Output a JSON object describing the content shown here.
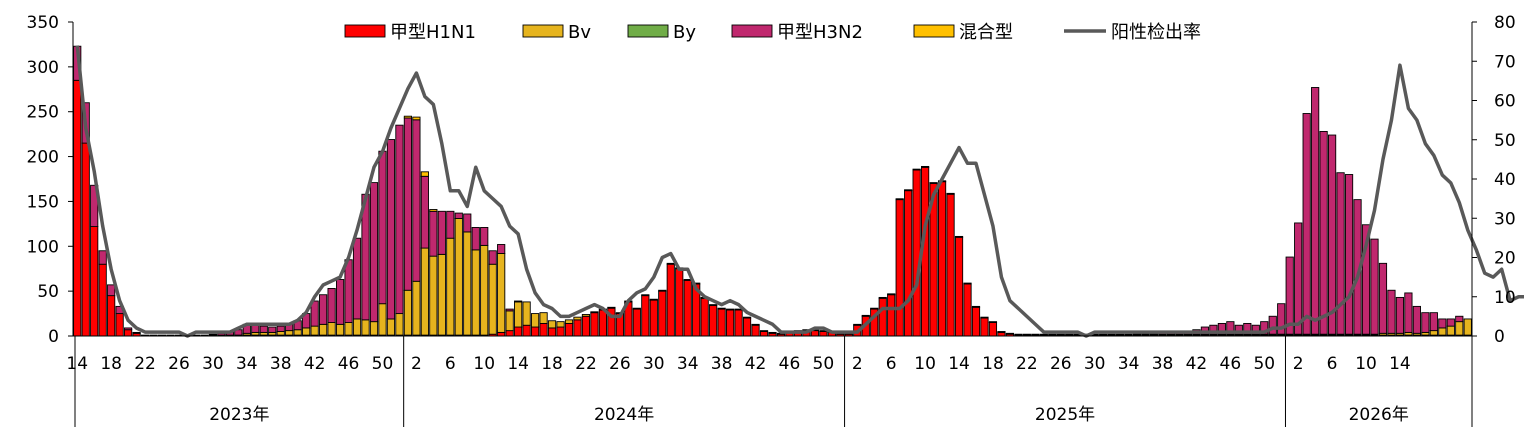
{
  "chart_data": {
    "type": "bar",
    "stacked": true,
    "legend_position": "top",
    "grid": false,
    "left_axis": {
      "ylim": [
        0,
        350
      ],
      "ticks": [
        0,
        50,
        100,
        150,
        200,
        250,
        300,
        350
      ]
    },
    "right_axis": {
      "ylim": [
        0,
        80
      ],
      "ticks": [
        0,
        10,
        20,
        30,
        40,
        50,
        60,
        70,
        80
      ]
    },
    "x_tick_labels": [
      {
        "week": 14,
        "label": "14"
      },
      {
        "week": 18,
        "label": "18"
      },
      {
        "week": 22,
        "label": "22"
      },
      {
        "week": 26,
        "label": "26"
      },
      {
        "week": 30,
        "label": "30"
      },
      {
        "week": 34,
        "label": "34"
      },
      {
        "week": 38,
        "label": "38"
      },
      {
        "week": 42,
        "label": "42"
      },
      {
        "week": 46,
        "label": "46"
      },
      {
        "week": 50,
        "label": "50"
      },
      {
        "week": 54,
        "label": "2"
      },
      {
        "week": 58,
        "label": "6"
      },
      {
        "week": 62,
        "label": "10"
      },
      {
        "week": 66,
        "label": "14"
      },
      {
        "week": 70,
        "label": "18"
      },
      {
        "week": 74,
        "label": "22"
      },
      {
        "week": 78,
        "label": "26"
      },
      {
        "week": 82,
        "label": "30"
      },
      {
        "week": 86,
        "label": "34"
      },
      {
        "week": 90,
        "label": "38"
      },
      {
        "week": 94,
        "label": "42"
      },
      {
        "week": 98,
        "label": "46"
      },
      {
        "week": 102,
        "label": "50"
      },
      {
        "week": 106,
        "label": "2"
      },
      {
        "week": 110,
        "label": "6"
      },
      {
        "week": 114,
        "label": "10"
      },
      {
        "week": 118,
        "label": "14"
      },
      {
        "week": 122,
        "label": "18"
      },
      {
        "week": 126,
        "label": "22"
      },
      {
        "week": 130,
        "label": "26"
      },
      {
        "week": 134,
        "label": "30"
      },
      {
        "week": 138,
        "label": "34"
      },
      {
        "week": 142,
        "label": "38"
      },
      {
        "week": 146,
        "label": "42"
      },
      {
        "week": 150,
        "label": "46"
      },
      {
        "week": 154,
        "label": "50"
      },
      {
        "week": 158,
        "label": "2"
      },
      {
        "week": 162,
        "label": "6"
      },
      {
        "week": 166,
        "label": "10"
      },
      {
        "week": 170,
        "label": "14"
      }
    ],
    "year_groups": [
      {
        "label": "2023年",
        "start_week": 14,
        "end_week": 52
      },
      {
        "label": "2024年",
        "start_week": 53,
        "end_week": 104
      },
      {
        "label": "2025年",
        "start_week": 105,
        "end_week": 156
      },
      {
        "label": "2026年",
        "start_week": 157,
        "end_week": 170
      }
    ],
    "weeks_start": 14,
    "series": [
      {
        "name": "甲型H1N1",
        "color": "#FF0000",
        "kind": "bar",
        "values": [
          285,
          215,
          122,
          80,
          45,
          25,
          7,
          3,
          1,
          1,
          1,
          1,
          1,
          1,
          1,
          1,
          1,
          1,
          1,
          1,
          1,
          1,
          1,
          1,
          1,
          1,
          1,
          1,
          1,
          1,
          1,
          1,
          1,
          1,
          1,
          1,
          1,
          1,
          1,
          1,
          1,
          1,
          1,
          1,
          1,
          1,
          1,
          1,
          1,
          2,
          4,
          6,
          10,
          12,
          10,
          14,
          9,
          10,
          14,
          18,
          22,
          26,
          29,
          31,
          25,
          38,
          30,
          45,
          40,
          50,
          80,
          75,
          62,
          58,
          42,
          34,
          30,
          29,
          29,
          20,
          12,
          5,
          3,
          2,
          4,
          5,
          6,
          6,
          5,
          4,
          2,
          2,
          12,
          22,
          30,
          42,
          46,
          152,
          162,
          185,
          188,
          170,
          172,
          158,
          110,
          58,
          32,
          20,
          15,
          4,
          2,
          1,
          1,
          1,
          1,
          1,
          1,
          1,
          1,
          1,
          1,
          1,
          1,
          1,
          1,
          1,
          1,
          1,
          1,
          1,
          1,
          1,
          1,
          1,
          1,
          1,
          1,
          1,
          1,
          1,
          1,
          1,
          1,
          1,
          1,
          1,
          1,
          1,
          1,
          1,
          1,
          1,
          1,
          1,
          1,
          1,
          1,
          1,
          1,
          1,
          1,
          1,
          1,
          1,
          1
        ]
      },
      {
        "name": "Bv",
        "color": "#E6B41E",
        "kind": "bar",
        "values": [
          0,
          0,
          0,
          0,
          0,
          0,
          0,
          0,
          0,
          0,
          0,
          0,
          0,
          0,
          0,
          0,
          0,
          0,
          0,
          0,
          2,
          3,
          3,
          3,
          4,
          5,
          6,
          8,
          10,
          12,
          14,
          12,
          14,
          18,
          17,
          15,
          35,
          18,
          24,
          50,
          60,
          97,
          88,
          90,
          108,
          130,
          115,
          95,
          100,
          78,
          88,
          22,
          28,
          26,
          15,
          12,
          8,
          6,
          4,
          3,
          2,
          1,
          1,
          1,
          1,
          1,
          1,
          1,
          1,
          1,
          1,
          1,
          1,
          1,
          1,
          1,
          1,
          1,
          1,
          1,
          1,
          1,
          1,
          1,
          1,
          1,
          1,
          1,
          1,
          1,
          1,
          1,
          1,
          1,
          1,
          1,
          1,
          1,
          1,
          1,
          1,
          1,
          1,
          1,
          1,
          1,
          1,
          1,
          1,
          1,
          1,
          1,
          1,
          1,
          1,
          1,
          1,
          1,
          1,
          1,
          1,
          1,
          1,
          1,
          1,
          1,
          1,
          1,
          1,
          1,
          1,
          1,
          1,
          1,
          1,
          1,
          1,
          1,
          1,
          1,
          1,
          1,
          1,
          1,
          1,
          1,
          1,
          1,
          1,
          1,
          1,
          1,
          1,
          1,
          2,
          2,
          2,
          3,
          2,
          3,
          5,
          8,
          10,
          15,
          18,
          20,
          30
        ]
      },
      {
        "name": "By",
        "color": "#70AD47",
        "kind": "bar",
        "values": [
          0,
          0,
          0,
          0,
          0,
          0,
          0,
          0,
          0,
          0,
          0,
          0,
          0,
          0,
          0,
          0,
          0,
          0,
          0,
          0,
          0,
          0,
          0,
          0,
          0,
          0,
          0,
          0,
          0,
          0,
          0,
          0,
          0,
          0,
          0,
          0,
          0,
          0,
          0,
          0,
          0,
          0,
          0,
          0,
          0,
          0,
          0,
          0,
          0,
          0,
          0,
          0,
          0,
          0,
          0,
          0,
          0,
          0,
          0,
          0,
          0,
          0,
          0,
          0,
          0,
          0,
          0,
          0,
          0,
          0,
          0,
          0,
          0,
          0,
          0,
          0,
          0,
          0,
          0,
          0,
          0,
          0,
          0,
          0,
          0,
          0,
          0,
          0,
          0,
          0,
          0,
          0,
          0,
          0,
          0,
          0,
          0,
          0,
          0,
          0,
          0,
          0,
          0,
          0,
          0,
          0,
          0,
          0,
          0,
          0,
          0,
          0,
          0,
          0,
          0,
          0,
          0,
          0,
          0,
          0,
          0,
          0,
          0,
          0,
          0,
          0,
          0,
          0,
          0,
          0,
          0,
          0,
          0,
          0,
          0,
          0,
          0,
          0,
          0,
          0,
          0,
          0,
          0,
          0,
          0,
          0,
          0,
          0,
          0,
          0,
          0,
          0,
          0,
          0,
          0,
          0,
          0,
          0,
          0,
          0,
          0,
          0,
          0,
          0,
          0,
          0,
          0,
          0,
          0
        ]
      },
      {
        "name": "甲型H3N2",
        "color": "#C0286E",
        "kind": "bar",
        "values": [
          38,
          45,
          46,
          15,
          12,
          8,
          2,
          1,
          0,
          0,
          0,
          0,
          0,
          0,
          0,
          0,
          1,
          2,
          4,
          6,
          10,
          8,
          7,
          6,
          6,
          8,
          10,
          16,
          28,
          33,
          38,
          50,
          70,
          90,
          140,
          155,
          170,
          200,
          210,
          192,
          180,
          80,
          50,
          48,
          30,
          6,
          20,
          25,
          20,
          15,
          10,
          2,
          1,
          0,
          0,
          0,
          0,
          0,
          0,
          0,
          0,
          0,
          0,
          0,
          0,
          0,
          0,
          0,
          0,
          0,
          0,
          0,
          0,
          0,
          0,
          0,
          0,
          0,
          0,
          0,
          0,
          0,
          0,
          0,
          0,
          0,
          0,
          0,
          0,
          0,
          0,
          0,
          0,
          0,
          0,
          0,
          0,
          0,
          0,
          0,
          0,
          0,
          0,
          0,
          0,
          0,
          0,
          0,
          0,
          0,
          0,
          0,
          0,
          0,
          0,
          0,
          0,
          0,
          0,
          0,
          0,
          0,
          0,
          0,
          0,
          1,
          1,
          1,
          2,
          2,
          2,
          3,
          5,
          8,
          10,
          12,
          14,
          10,
          12,
          10,
          14,
          20,
          34,
          86,
          124,
          246,
          275,
          226,
          222,
          180,
          178,
          150,
          122,
          106,
          78,
          48,
          40,
          44,
          30,
          22,
          20,
          10,
          8,
          6
        ]
      },
      {
        "name": "混合型",
        "color": "#FFC000",
        "kind": "bar",
        "values": [
          0,
          0,
          0,
          0,
          0,
          0,
          0,
          0,
          0,
          0,
          0,
          0,
          0,
          0,
          0,
          0,
          0,
          0,
          0,
          0,
          0,
          0,
          0,
          0,
          0,
          0,
          0,
          0,
          0,
          0,
          0,
          0,
          0,
          0,
          0,
          0,
          0,
          0,
          0,
          2,
          3,
          5,
          2,
          0,
          0,
          0,
          0,
          0,
          0,
          0,
          0,
          0,
          0,
          0,
          0,
          0,
          0,
          0,
          0,
          0,
          0,
          0,
          0,
          0,
          0,
          0,
          0,
          0,
          0,
          0,
          0,
          0,
          0,
          0,
          0,
          0,
          0,
          0,
          0,
          0,
          0,
          0,
          0,
          0,
          0,
          0,
          0,
          0,
          0,
          0,
          0,
          0,
          0,
          0,
          0,
          0,
          0,
          0,
          0,
          0,
          0,
          0,
          0,
          0,
          0,
          0,
          0,
          0,
          0,
          0,
          0,
          0,
          0,
          0,
          0,
          0,
          0,
          0,
          0,
          0,
          0,
          0,
          0,
          0,
          0,
          0,
          0,
          0,
          0,
          0,
          0,
          0,
          0,
          0,
          0,
          0,
          0,
          0,
          0,
          0,
          0,
          0,
          0,
          0,
          0,
          0,
          0,
          0,
          0,
          0,
          0,
          0,
          0,
          0,
          0,
          0,
          0,
          0,
          0,
          0,
          0,
          0,
          0,
          0,
          0,
          0,
          0,
          0,
          0
        ]
      },
      {
        "name": "阳性检出率",
        "color": "#595959",
        "kind": "line",
        "axis": "right",
        "values": [
          74,
          53,
          42,
          28,
          17,
          9,
          4,
          2,
          1,
          1,
          1,
          1,
          1,
          0,
          1,
          1,
          1,
          1,
          1,
          2,
          3,
          3,
          3,
          3,
          3,
          3,
          4,
          6,
          10,
          13,
          14,
          15,
          20,
          27,
          35,
          43,
          47,
          53,
          58,
          63,
          67,
          61,
          59,
          49,
          37,
          37,
          33,
          43,
          37,
          35,
          33,
          28,
          26,
          17,
          11,
          8,
          7,
          5,
          5,
          6,
          7,
          8,
          7,
          5,
          5,
          9,
          11,
          12,
          15,
          20,
          21,
          17,
          17,
          12,
          10,
          9,
          8,
          9,
          8,
          6,
          5,
          4,
          3,
          1,
          1,
          1,
          1,
          2,
          2,
          1,
          1,
          1,
          1,
          3,
          5,
          7,
          7,
          7,
          9,
          13,
          28,
          36,
          40,
          44,
          48,
          44,
          44,
          36,
          28,
          15,
          9,
          7,
          5,
          3,
          1,
          1,
          1,
          1,
          1,
          0,
          1,
          1,
          1,
          1,
          1,
          1,
          1,
          1,
          1,
          1,
          1,
          1,
          1,
          1,
          1,
          1,
          1,
          1,
          1,
          1,
          1,
          2,
          2,
          3,
          3,
          5,
          4,
          5,
          6,
          8,
          10,
          15,
          23,
          32,
          45,
          55,
          69,
          58,
          55,
          49,
          46,
          41,
          39,
          34,
          27,
          22,
          16,
          15,
          17,
          9,
          10,
          10,
          8,
          11
        ]
      }
    ]
  }
}
